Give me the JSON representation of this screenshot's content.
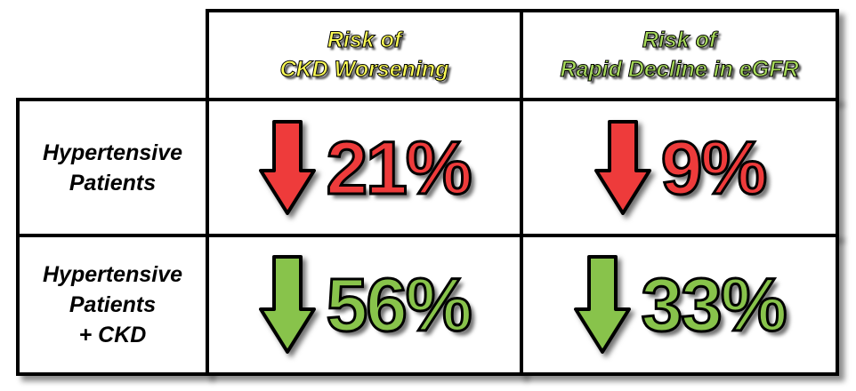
{
  "header": {
    "col1": "Risk of\nCKD Worsening",
    "col2": "Risk of\nRapid Decline in eGFR"
  },
  "rows": [
    {
      "label": "Hypertensive\nPatients",
      "values": [
        "21%",
        "9%"
      ],
      "direction": "down",
      "color": "#ee3b3b"
    },
    {
      "label": "Hypertensive\nPatients\n+ CKD",
      "values": [
        "56%",
        "33%"
      ],
      "direction": "down",
      "color": "#88c34b"
    }
  ],
  "colors": {
    "header_col1_text": "#ffff55",
    "header_col2_text": "#a6d95a",
    "red": "#ee3b3b",
    "green": "#88c34b",
    "border": "#000000"
  },
  "icons": [
    "arrow-down-red-icon",
    "arrow-down-green-icon"
  ]
}
